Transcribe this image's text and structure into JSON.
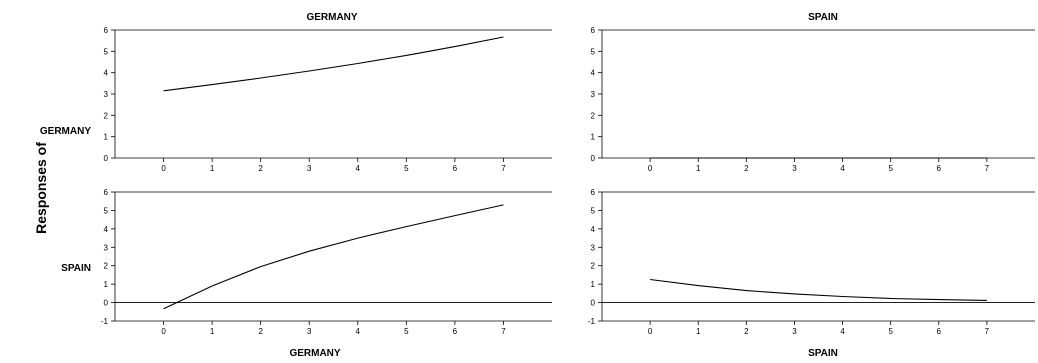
{
  "figure": {
    "y_axis_title": "Responses of",
    "row_labels": [
      "GERMANY",
      "SPAIN"
    ],
    "column_labels_top": [
      "GERMANY",
      "SPAIN"
    ],
    "column_labels_bottom": [
      "GERMANY",
      "SPAIN"
    ]
  },
  "chart_data": [
    {
      "type": "line",
      "title": "GERMANY",
      "row_label": "GERMANY",
      "x": [
        0,
        1,
        2,
        3,
        4,
        5,
        6,
        7
      ],
      "series": [
        {
          "values": [
            3.15,
            3.44,
            3.75,
            4.08,
            4.43,
            4.81,
            5.22,
            5.67
          ]
        }
      ],
      "xlim": [
        -1,
        8
      ],
      "ylim": [
        0,
        6
      ],
      "yticks": [
        0,
        1,
        2,
        3,
        4,
        5,
        6
      ],
      "xticks": [
        0,
        1,
        2,
        3,
        4,
        5,
        6,
        7
      ],
      "zero_line": false
    },
    {
      "type": "line",
      "title": "SPAIN",
      "row_label": "GERMANY",
      "x": [
        0,
        1,
        2,
        3,
        4,
        5,
        6,
        7
      ],
      "series": [
        {
          "values": [
            0,
            0,
            0,
            0,
            0,
            0,
            0,
            0
          ]
        }
      ],
      "xlim": [
        -1,
        8
      ],
      "ylim": [
        0,
        6
      ],
      "yticks": [
        0,
        1,
        2,
        3,
        4,
        5,
        6
      ],
      "xticks": [
        0,
        1,
        2,
        3,
        4,
        5,
        6,
        7
      ],
      "zero_line": false
    },
    {
      "type": "line",
      "title": "GERMANY",
      "row_label": "SPAIN",
      "x": [
        0,
        1,
        2,
        3,
        4,
        5,
        6,
        7
      ],
      "series": [
        {
          "values": [
            -0.33,
            0.9,
            1.95,
            2.79,
            3.5,
            4.12,
            4.72,
            5.3
          ]
        }
      ],
      "xlim": [
        -1,
        8
      ],
      "ylim": [
        -1,
        6
      ],
      "yticks": [
        -1,
        0,
        1,
        2,
        3,
        4,
        5,
        6
      ],
      "xticks": [
        0,
        1,
        2,
        3,
        4,
        5,
        6,
        7
      ],
      "zero_line": true
    },
    {
      "type": "line",
      "title": "SPAIN",
      "row_label": "SPAIN",
      "x": [
        0,
        1,
        2,
        3,
        4,
        5,
        6,
        7
      ],
      "series": [
        {
          "values": [
            1.25,
            0.92,
            0.65,
            0.47,
            0.33,
            0.22,
            0.16,
            0.12
          ]
        }
      ],
      "xlim": [
        -1,
        8
      ],
      "ylim": [
        -1,
        6
      ],
      "yticks": [
        -1,
        0,
        1,
        2,
        3,
        4,
        5,
        6
      ],
      "xticks": [
        0,
        1,
        2,
        3,
        4,
        5,
        6,
        7
      ],
      "zero_line": true
    }
  ]
}
